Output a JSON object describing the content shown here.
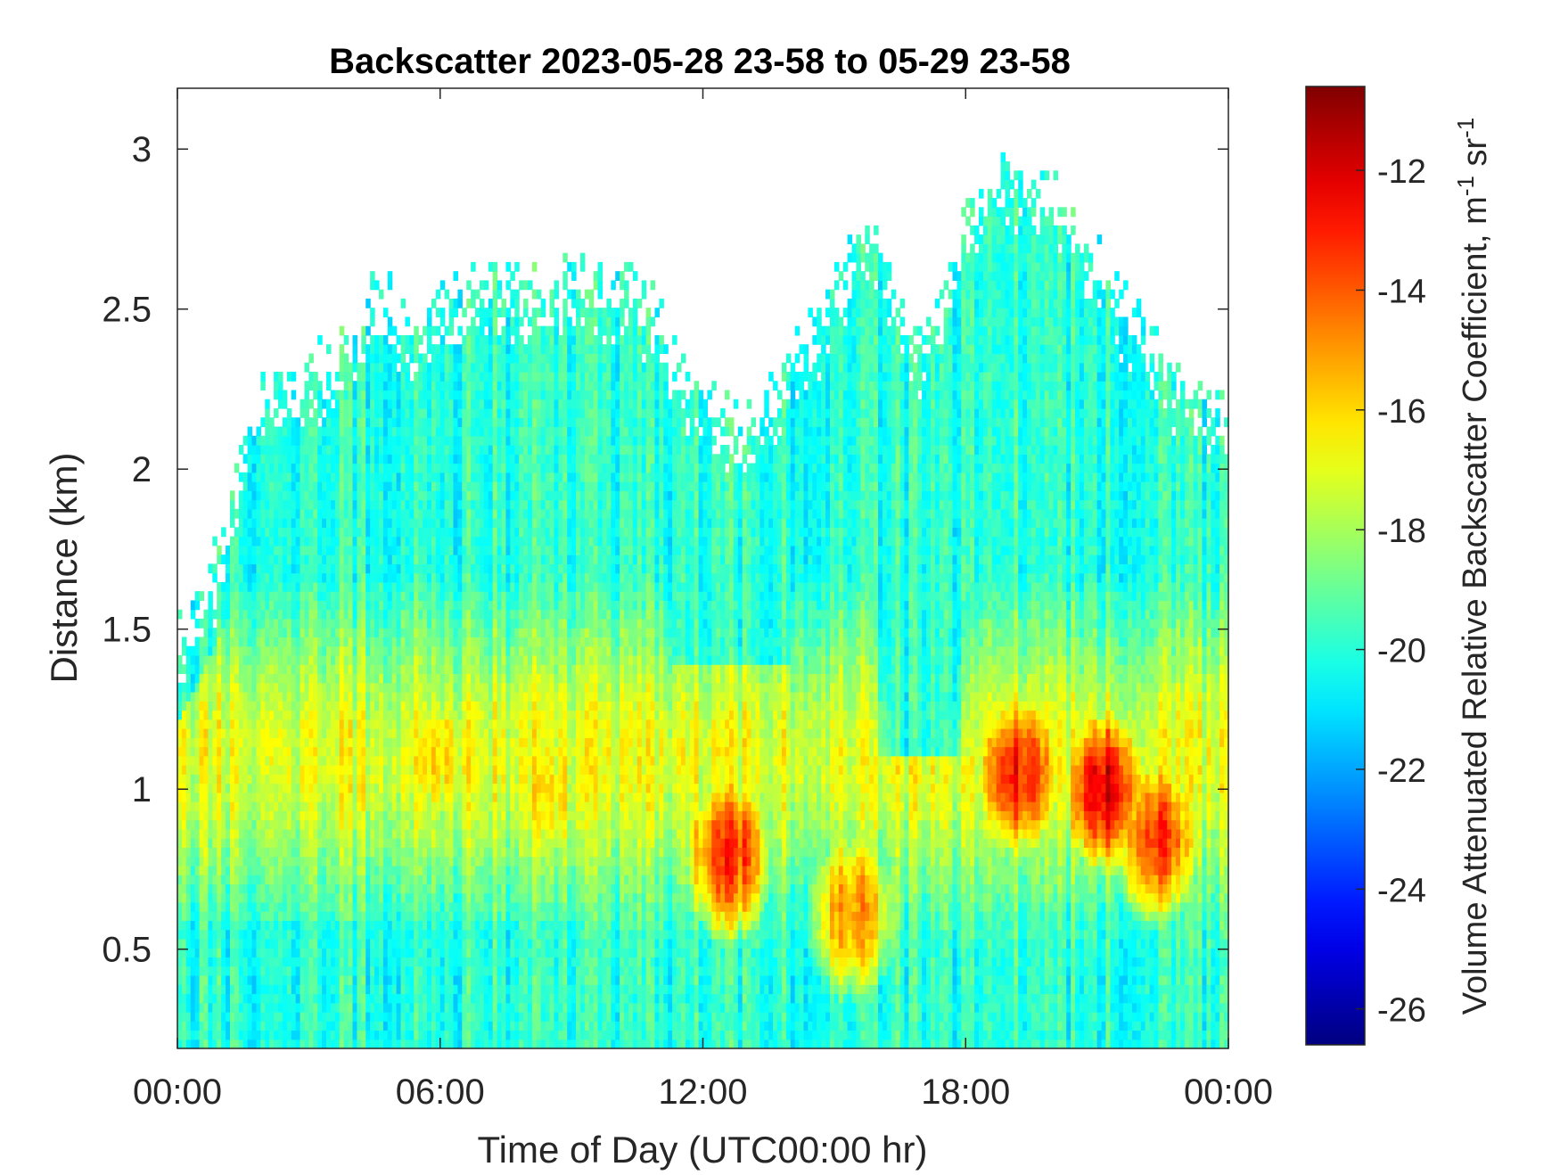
{
  "chart_data": {
    "type": "heatmap",
    "title": "Backscatter 2023-05-28 23-58 to 05-29 23-58",
    "xlabel": "Time of Day (UTC00:00 hr)",
    "ylabel": "Distance (km)",
    "colorbar_label": "Volume Attenuated Relative Backscatter Coefficient, m",
    "colorbar_label_units": [
      {
        "base": "-1",
        "text": " sr"
      },
      {
        "base": "-1",
        "text": ""
      }
    ],
    "colorbar_unit_base": " sr",
    "colorbar_exp1": "-1",
    "colorbar_exp2": "-1",
    "xlim": [
      0,
      24
    ],
    "ylim": [
      0.19,
      3.19
    ],
    "clim": [
      -26.6,
      -10.6
    ],
    "x_ticks": [
      0,
      6,
      12,
      18,
      24
    ],
    "x_tick_labels": [
      "00:00",
      "06:00",
      "12:00",
      "18:00",
      "00:00"
    ],
    "y_ticks": [
      0.5,
      1,
      1.5,
      2,
      2.5,
      3
    ],
    "y_tick_labels": [
      "0.5",
      "1",
      "1.5",
      "2",
      "2.5",
      "3"
    ],
    "c_ticks": [
      -26,
      -24,
      -22,
      -20,
      -18,
      -16,
      -14,
      -12
    ],
    "c_tick_labels": [
      "-26",
      "-24",
      "-22",
      "-20",
      "-18",
      "-16",
      "-14",
      "-12"
    ],
    "colormap": "jet",
    "missing_color": "#ffffff",
    "signal_top_km": [
      [
        0,
        1.5
      ],
      [
        1,
        1.8
      ],
      [
        1.5,
        2.1
      ],
      [
        2,
        2.3
      ],
      [
        3,
        2.35
      ],
      [
        4,
        2.45
      ],
      [
        4.5,
        2.6
      ],
      [
        5,
        2.55
      ],
      [
        5.5,
        2.45
      ],
      [
        6,
        2.55
      ],
      [
        7,
        2.65
      ],
      [
        8,
        2.62
      ],
      [
        9,
        2.65
      ],
      [
        10,
        2.63
      ],
      [
        11,
        2.55
      ],
      [
        11.5,
        2.35
      ],
      [
        12,
        2.3
      ],
      [
        12.5,
        2.2
      ],
      [
        13,
        2.2
      ],
      [
        13.5,
        2.25
      ],
      [
        14,
        2.4
      ],
      [
        15,
        2.6
      ],
      [
        15.5,
        2.75
      ],
      [
        16,
        2.8
      ],
      [
        16.5,
        2.5
      ],
      [
        17,
        2.45
      ],
      [
        17.5,
        2.6
      ],
      [
        18,
        2.85
      ],
      [
        19,
        3.0
      ],
      [
        20,
        2.9
      ],
      [
        21,
        2.7
      ],
      [
        22,
        2.5
      ],
      [
        23,
        2.3
      ],
      [
        24,
        2.2
      ]
    ],
    "high_backscatter_regions": [
      {
        "t_center": 6.0,
        "z_center_km": 1.1,
        "value": -15.0
      },
      {
        "t_center": 8.5,
        "z_center_km": 1.0,
        "value": -15.5
      },
      {
        "t_center": 12.6,
        "z_center_km": 0.8,
        "value": -12.5
      },
      {
        "t_center": 15.4,
        "z_center_km": 0.62,
        "value": -14.0
      },
      {
        "t_center": 19.2,
        "z_center_km": 1.05,
        "value": -12.0
      },
      {
        "t_center": 21.2,
        "z_center_km": 1.0,
        "value": -11.0
      },
      {
        "t_center": 22.3,
        "z_center_km": 0.85,
        "value": -12.5
      }
    ]
  }
}
